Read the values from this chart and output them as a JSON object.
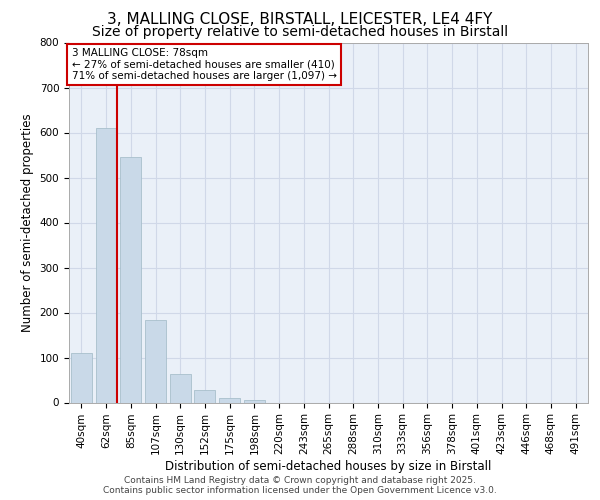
{
  "title_line1": "3, MALLING CLOSE, BIRSTALL, LEICESTER, LE4 4FY",
  "title_line2": "Size of property relative to semi-detached houses in Birstall",
  "xlabel": "Distribution of semi-detached houses by size in Birstall",
  "ylabel": "Number of semi-detached properties",
  "categories": [
    "40sqm",
    "62sqm",
    "85sqm",
    "107sqm",
    "130sqm",
    "152sqm",
    "175sqm",
    "198sqm",
    "220sqm",
    "243sqm",
    "265sqm",
    "288sqm",
    "310sqm",
    "333sqm",
    "356sqm",
    "378sqm",
    "401sqm",
    "423sqm",
    "446sqm",
    "468sqm",
    "491sqm"
  ],
  "values": [
    110,
    610,
    545,
    183,
    63,
    28,
    10,
    5,
    0,
    0,
    0,
    0,
    0,
    0,
    0,
    0,
    0,
    0,
    0,
    0,
    0
  ],
  "bar_color": "#c9d9e8",
  "bar_edge_color": "#a8bfcc",
  "vline_x": 1.43,
  "vline_color": "#cc0000",
  "annotation_text": "3 MALLING CLOSE: 78sqm\n← 27% of semi-detached houses are smaller (410)\n71% of semi-detached houses are larger (1,097) →",
  "annotation_box_color": "#ffffff",
  "annotation_box_edge": "#cc0000",
  "ylim": [
    0,
    800
  ],
  "yticks": [
    0,
    100,
    200,
    300,
    400,
    500,
    600,
    700,
    800
  ],
  "grid_color": "#d0d8e8",
  "background_color": "#eaf0f8",
  "footer_line1": "Contains HM Land Registry data © Crown copyright and database right 2025.",
  "footer_line2": "Contains public sector information licensed under the Open Government Licence v3.0.",
  "title_fontsize": 11,
  "subtitle_fontsize": 10,
  "axis_label_fontsize": 8.5,
  "tick_fontsize": 7.5,
  "annotation_fontsize": 7.5,
  "footer_fontsize": 6.5
}
